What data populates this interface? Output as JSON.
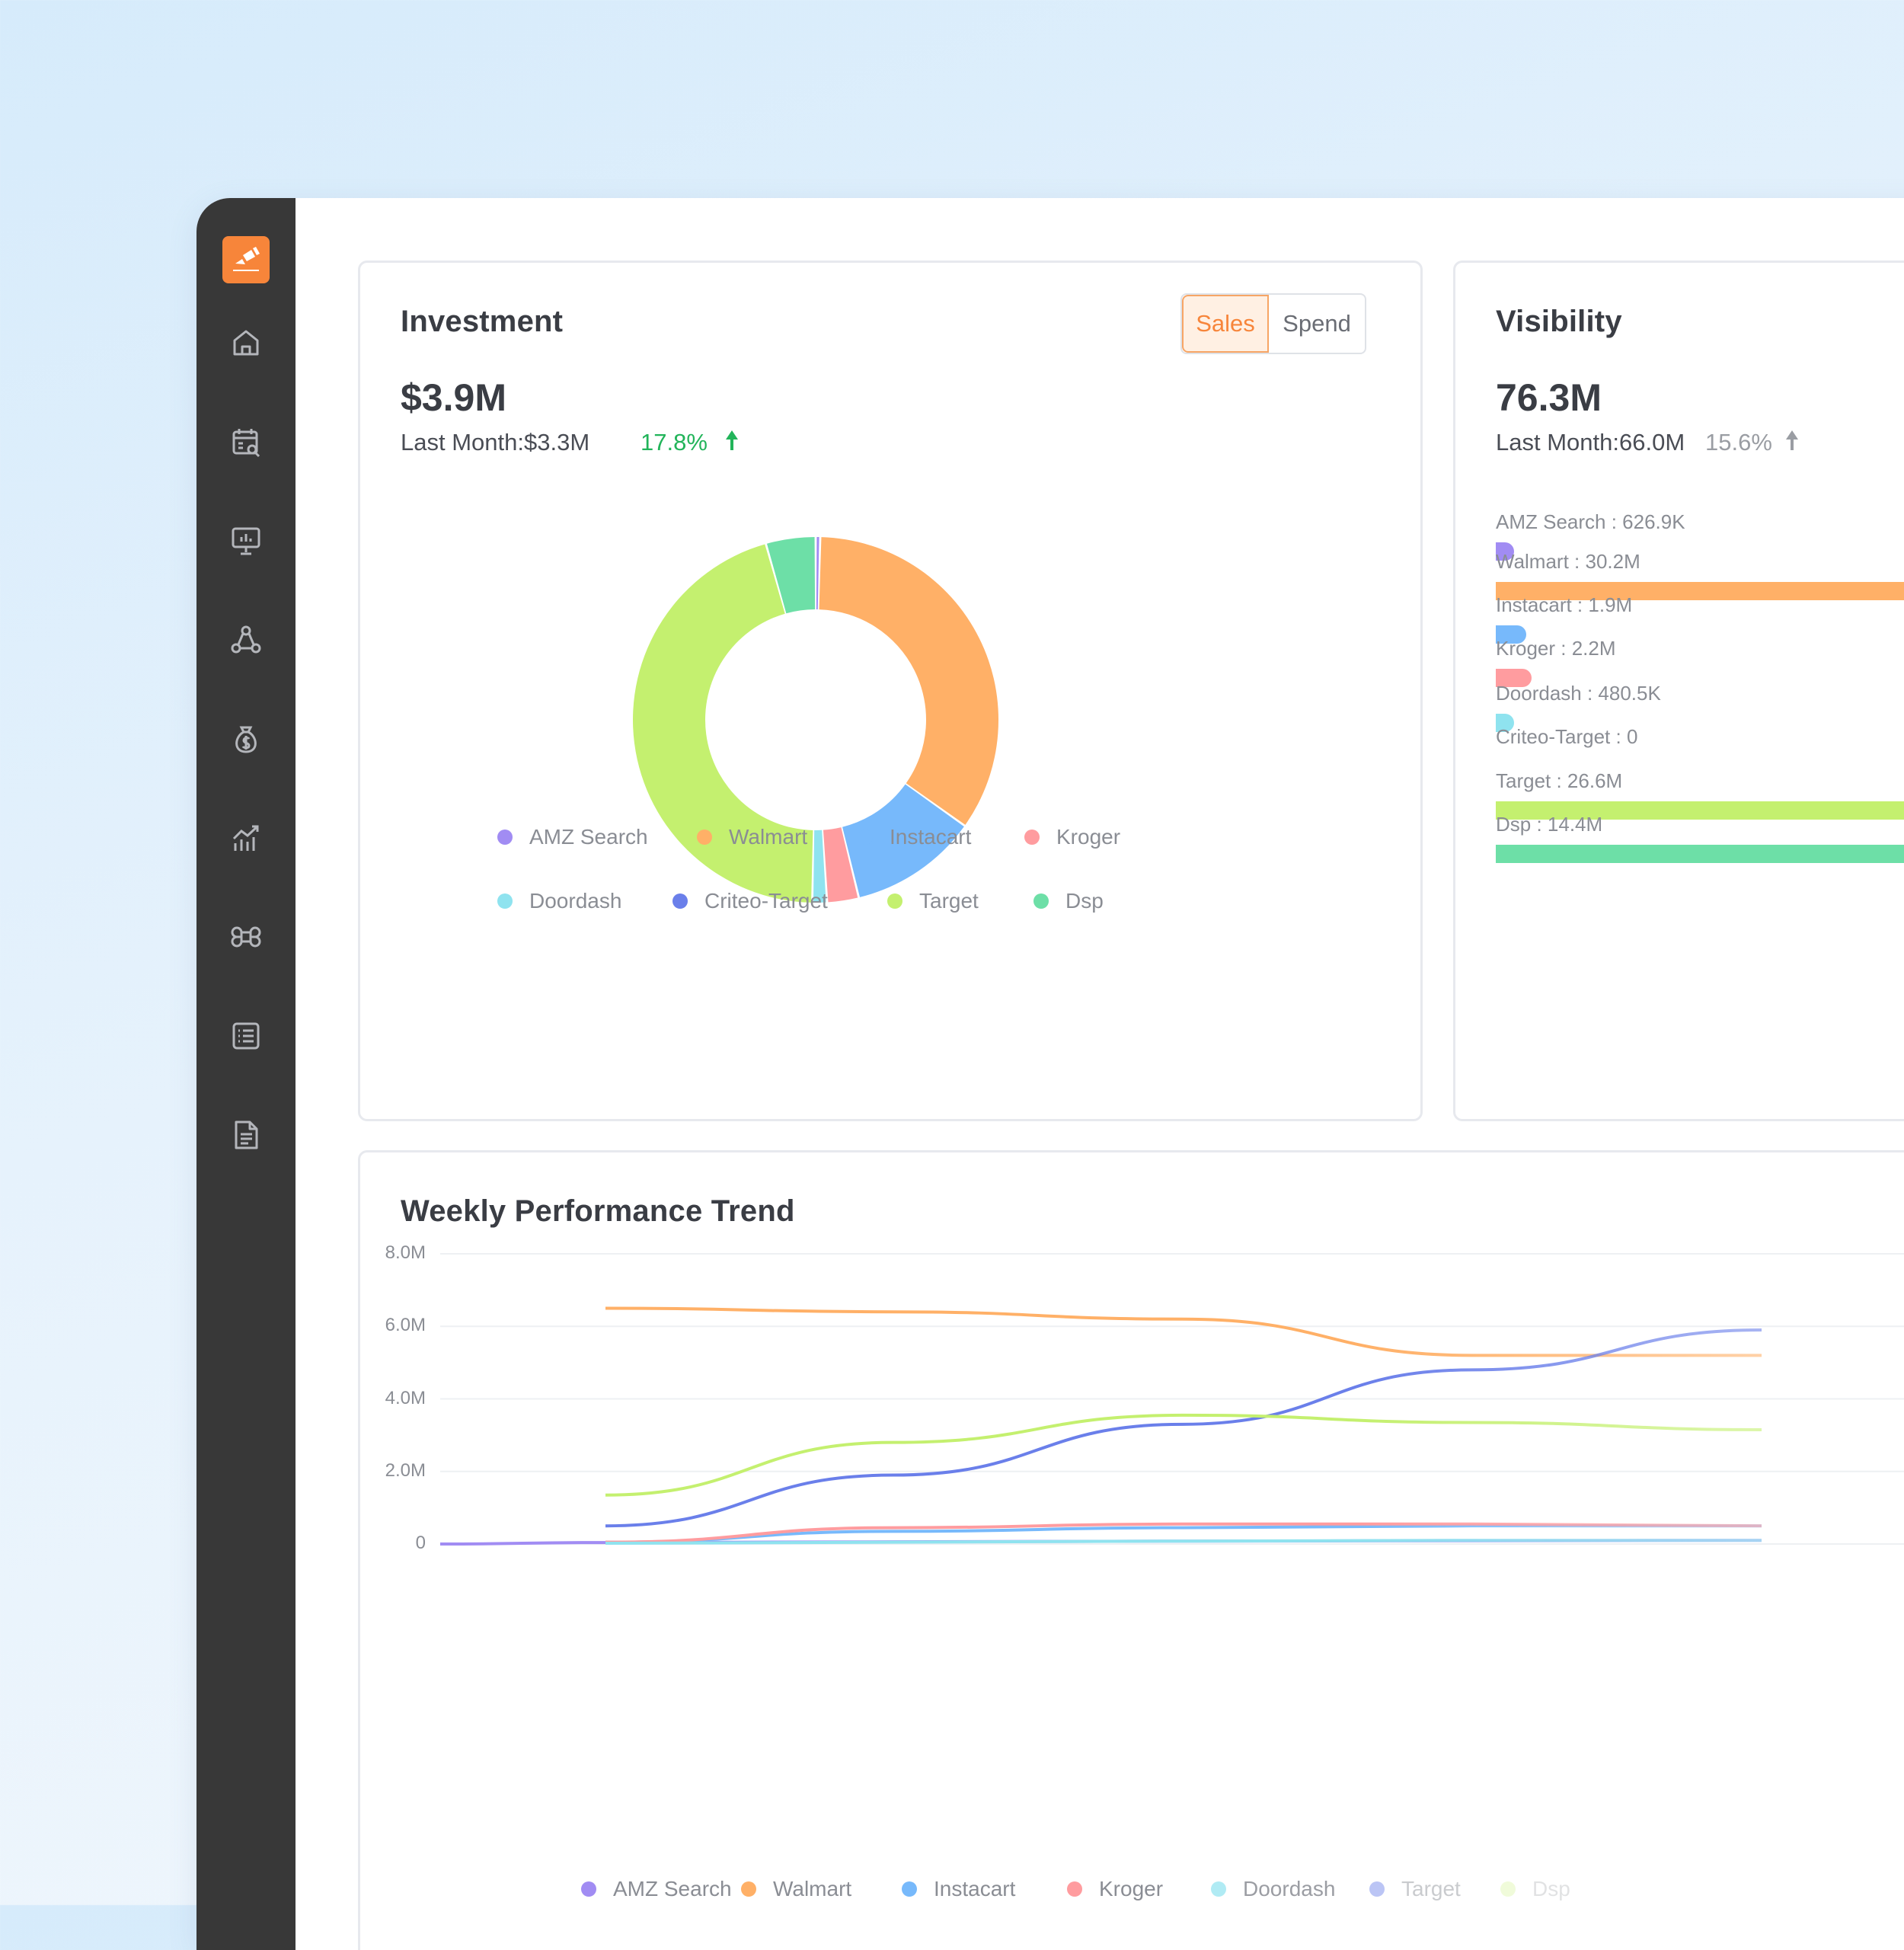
{
  "sidebar": {
    "logo": "app-logo",
    "items": [
      {
        "icon": "home-icon"
      },
      {
        "icon": "calendar-search-icon"
      },
      {
        "icon": "presentation-chart-icon"
      },
      {
        "icon": "network-icon"
      },
      {
        "icon": "money-bag-icon"
      },
      {
        "icon": "growth-chart-icon"
      },
      {
        "icon": "command-icon"
      },
      {
        "icon": "list-icon"
      },
      {
        "icon": "document-icon"
      }
    ]
  },
  "investment": {
    "title": "Investment",
    "toggle": {
      "sales": "Sales",
      "spend": "Spend",
      "active": "Sales"
    },
    "value": "$3.9M",
    "last_month": "Last Month:$3.3M",
    "change": "17.8%",
    "legend": [
      "AMZ Search",
      "Walmart",
      "Instacart",
      "Kroger",
      "Doordash",
      "Criteo-Target",
      "Target",
      "Dsp"
    ]
  },
  "visibility": {
    "title": "Visibility",
    "value": "76.3M",
    "last_month": "Last Month:66.0M",
    "change": "15.6%",
    "bars": [
      {
        "label": "AMZ Search : 626.9K",
        "value": 626.9,
        "color": "#a18cf3"
      },
      {
        "label": "Walmart : 30.2M",
        "value": 30200,
        "color": "#ffb067"
      },
      {
        "label": "Instacart : 1.9M",
        "value": 1900,
        "color": "#77b9fb"
      },
      {
        "label": "Kroger : 2.2M",
        "value": 2200,
        "color": "#ff9c9f"
      },
      {
        "label": "Doordash : 480.5K",
        "value": 480.5,
        "color": "#8fe3ef"
      },
      {
        "label": "Criteo-Target : 0",
        "value": 0,
        "color": "#6a7fea"
      },
      {
        "label": "Target : 26.6M",
        "value": 26600,
        "color": "#c4f06f"
      },
      {
        "label": "Dsp : 14.4M",
        "value": 14400,
        "color": "#6ddfa7"
      }
    ]
  },
  "weekly": {
    "title": "Weekly Performance Trend",
    "legend": [
      "AMZ Search",
      "Walmart",
      "Instacart",
      "Kroger",
      "Doordash",
      "Target",
      "Dsp"
    ]
  },
  "colors": {
    "amz": "#a18cf3",
    "walmart": "#ffb067",
    "instacart": "#77b9fb",
    "kroger": "#ff9c9f",
    "doordash": "#8fe3ef",
    "criteo": "#6a7fea",
    "target": "#c4f06f",
    "dsp": "#6ddfa7",
    "accent": "#f7853a",
    "up": "#22b45a"
  },
  "chart_data": [
    {
      "type": "pie",
      "categories": [
        "AMZ Search",
        "Walmart",
        "Instacart",
        "Kroger",
        "Doordash",
        "Criteo-Target",
        "Target",
        "Dsp"
      ],
      "values": [
        0.4,
        34.5,
        11.4,
        2.8,
        1.3,
        0,
        45.4,
        4.4
      ],
      "colors": [
        "#a18cf3",
        "#ffb067",
        "#77b9fb",
        "#ff9c9f",
        "#8fe3ef",
        "#6a7fea",
        "#c4f06f",
        "#6ddfa7"
      ]
    },
    {
      "type": "line",
      "title": "Weekly Performance Trend",
      "ylim": [
        0,
        8
      ],
      "yticks": [
        "0",
        "2.0M",
        "4.0M",
        "6.0M",
        "8.0M"
      ],
      "x": [
        0,
        1,
        2,
        3,
        4,
        5
      ],
      "series": [
        {
          "name": "AMZ Search",
          "color": "#a18cf3",
          "values": [
            0,
            0.04,
            0.06,
            0.08,
            0.09,
            0.1
          ]
        },
        {
          "name": "Walmart",
          "color": "#ffb067",
          "values": [
            null,
            6.5,
            6.4,
            6.2,
            5.2,
            5.2
          ]
        },
        {
          "name": "Instacart",
          "color": "#77b9fb",
          "values": [
            null,
            0.05,
            0.35,
            0.45,
            0.5,
            0.5
          ]
        },
        {
          "name": "Kroger",
          "color": "#ff9c9f",
          "values": [
            null,
            0.05,
            0.45,
            0.55,
            0.55,
            0.5
          ]
        },
        {
          "name": "Doordash",
          "color": "#8fe3ef",
          "values": [
            null,
            0.02,
            0.05,
            0.08,
            0.1,
            0.1
          ]
        },
        {
          "name": "Target",
          "color": "#6a7fea",
          "values": [
            null,
            0.5,
            1.9,
            3.3,
            4.8,
            5.9
          ]
        },
        {
          "name": "Dsp",
          "color": "#c4f06f",
          "values": [
            null,
            1.35,
            2.8,
            3.55,
            3.35,
            3.15
          ]
        }
      ]
    }
  ]
}
